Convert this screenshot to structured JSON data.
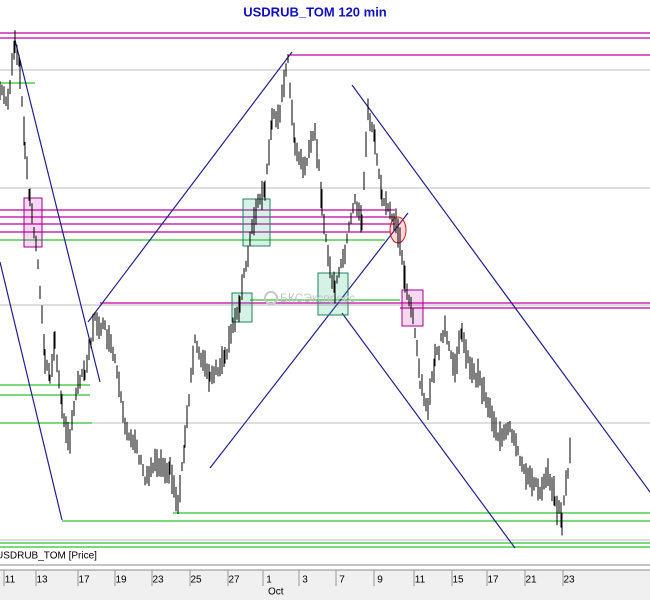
{
  "header": {
    "title": "USDRUB_TOM 120 min"
  },
  "panel": {
    "label": "USDRUB_TOM [Price]",
    "watermark": "БКСЭкспресс"
  },
  "x_axis": {
    "ticks": [
      "11",
      "13",
      "17",
      "19",
      "23",
      "25",
      "27",
      "1",
      "3",
      "7",
      "9",
      "11",
      "15",
      "17",
      "21",
      "23"
    ],
    "month": "Oct"
  }
}
